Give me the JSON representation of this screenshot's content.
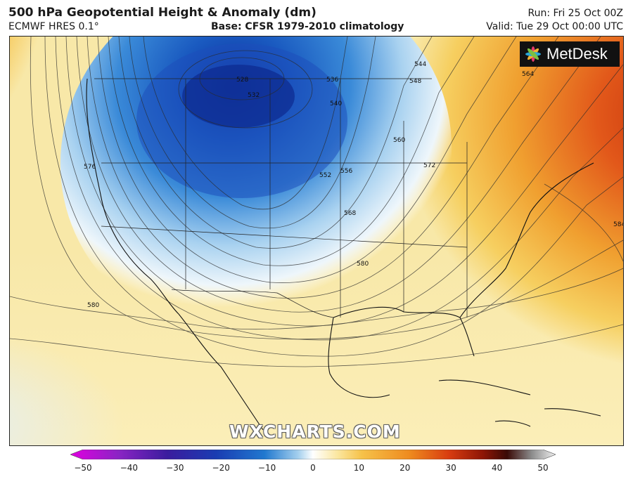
{
  "header": {
    "title": "500 hPa Geopotential Height & Anomaly (dm)",
    "model": "ECMWF HRES 0.1°",
    "base": "Base: CFSR 1979-2010 climatology",
    "run": "Run: Fri 25 Oct 00Z",
    "valid": "Valid: Tue 29 Oct 00:00 UTC"
  },
  "logo": {
    "text": "MetDesk",
    "icon": "starburst-icon"
  },
  "watermark": "WXCHARTS.COM",
  "contour_labels": [
    "528",
    "532",
    "536",
    "540",
    "544",
    "548",
    "552",
    "556",
    "560",
    "564",
    "568",
    "572",
    "576",
    "580",
    "580",
    "584"
  ],
  "colorbar": {
    "ticks": [
      "−50",
      "−40",
      "−30",
      "−20",
      "−10",
      "0",
      "10",
      "20",
      "30",
      "40",
      "50"
    ],
    "min": -50,
    "max": 50,
    "colors": [
      "#e000e0",
      "#9a20c8",
      "#4a1aa8",
      "#1c3fb5",
      "#1f78d0",
      "#8fc4ea",
      "#ffffff",
      "#fbe9a0",
      "#f6c24a",
      "#ee8a1e",
      "#dd4010",
      "#b01e08",
      "#6a0e04",
      "#3a0a06",
      "#8a8a8a",
      "#f0f0f0"
    ]
  }
}
